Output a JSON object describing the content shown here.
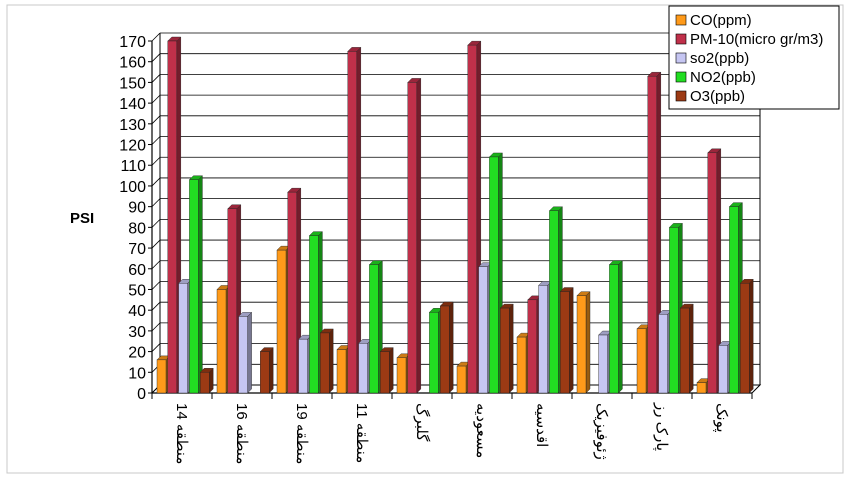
{
  "chart_data": {
    "type": "bar",
    "ylabel": "PSI",
    "ylim": [
      0,
      170
    ],
    "ytick_step": 10,
    "grid": true,
    "legend_position": "top-right",
    "categories": [
      "منطقه 14",
      "منطقه 16",
      "منطقه 19",
      "منطقه 11",
      "گلبرگ",
      "مسعودیه",
      "اقدسیه",
      "ژئوفیزیک",
      "پارک رز",
      "پونک"
    ],
    "series": [
      {
        "name": "CO(ppm)",
        "color": "#ff9a1a",
        "values": [
          16,
          50,
          69,
          21,
          17,
          13,
          27,
          47,
          31,
          5
        ]
      },
      {
        "name": "PM-10(micro gr/m3)",
        "color": "#c0304a",
        "values": [
          170,
          89,
          97,
          165,
          150,
          168,
          45,
          0,
          153,
          116
        ]
      },
      {
        "name": "so2(ppb)",
        "color": "#c6c6f2",
        "values": [
          53,
          37,
          26,
          24,
          0,
          61,
          52,
          28,
          38,
          23
        ]
      },
      {
        "name": "NO2(ppb)",
        "color": "#22dd22",
        "values": [
          103,
          0,
          76,
          62,
          39,
          114,
          88,
          62,
          80,
          90
        ]
      },
      {
        "name": "O3(ppb)",
        "color": "#9c3a14",
        "values": [
          10,
          20,
          29,
          20,
          42,
          41,
          49,
          0,
          41,
          53
        ]
      }
    ]
  }
}
